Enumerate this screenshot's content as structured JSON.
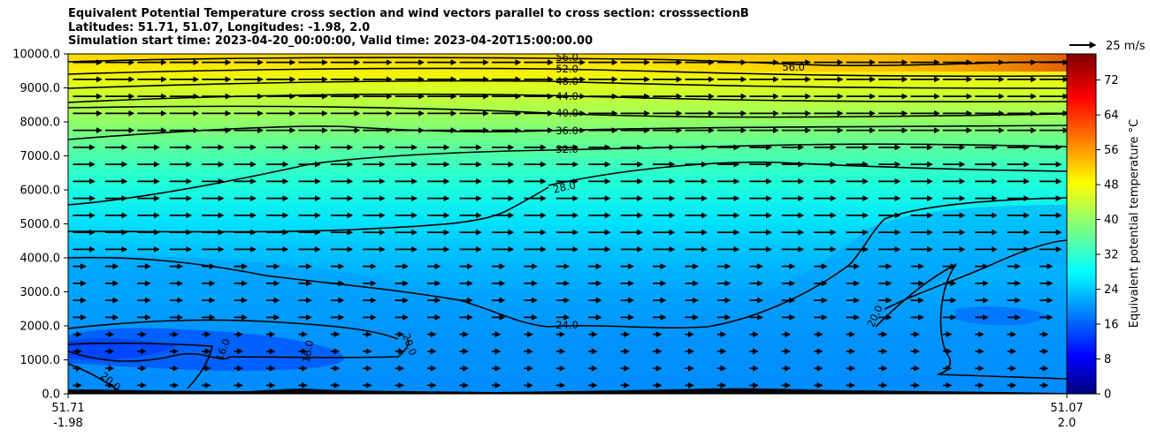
{
  "chart_data": {
    "type": "contour",
    "title_lines": [
      "Equivalent Potential Temperature cross section and wind vectors parallel to cross section: crosssectionB",
      "Latitudes: 51.71, 51.07, Longitudes: -1.98, 2.0",
      "Simulation start time: 2023-04-20_00:00:00, Valid time: 2023-04-20T15:00:00.00"
    ],
    "y_ticks": [
      "0.0",
      "1000.0",
      "2000.0",
      "3000.0",
      "4000.0",
      "5000.0",
      "6000.0",
      "7000.0",
      "8000.0",
      "9000.0",
      "10000.0"
    ],
    "ylim": [
      0,
      10000
    ],
    "x_ticks": [
      {
        "lat": "51.71",
        "lon": "-1.98"
      },
      {
        "lat": "51.07",
        "lon": "2.0"
      }
    ],
    "colorbar": {
      "label": "Equivalent potential temperature $^\\circ$C",
      "label_display": "Equivalent potential temperature °C",
      "ticks": [
        "0",
        "8",
        "16",
        "24",
        "32",
        "40",
        "48",
        "56",
        "64",
        "72"
      ],
      "range": [
        0,
        78
      ],
      "cmap": "jet"
    },
    "quiver_key": "25 m/s",
    "contour_labels": [
      "56.0",
      "52.0",
      "48.0",
      "44.0",
      "40.0",
      "36.0",
      "32.0",
      "28.0",
      "24.0",
      "20.0",
      "16.0"
    ],
    "colors": {
      "arrow": "#000000",
      "contour": "#000000",
      "terrain": "#000000"
    }
  }
}
